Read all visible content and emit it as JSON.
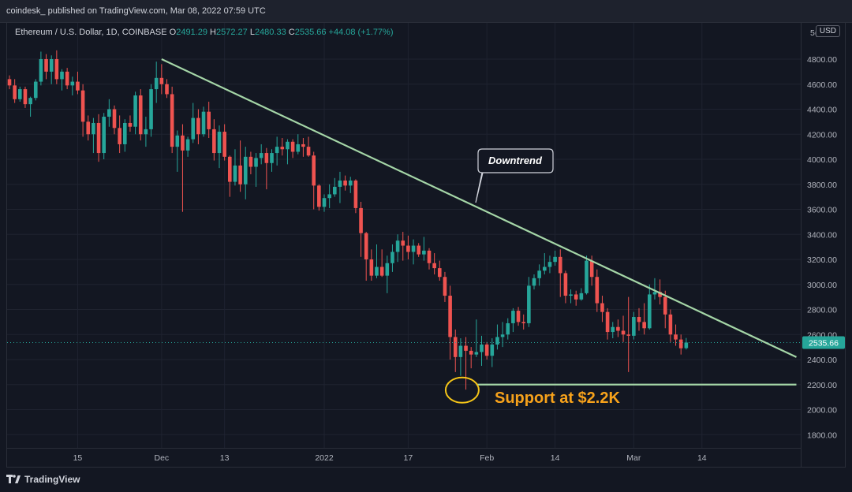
{
  "header": {
    "text": "coindesk_ published on TradingView.com, Mar 08, 2022 07:59 UTC"
  },
  "legend": {
    "symbol": "Ethereum / U.S. Dollar, 1D, COINBASE",
    "o_label": "O",
    "o_value": "2491.29",
    "h_label": "H",
    "h_value": "2572.27",
    "l_label": "L",
    "l_value": "2480.33",
    "c_label": "C",
    "c_value": "2535.66",
    "change": "+44.08 (+1.77%)"
  },
  "currency": "USD",
  "footer": {
    "brand": "TradingView",
    "logo_icon": "tradingview-logo-icon"
  },
  "colors": {
    "background": "#131722",
    "up": "#26a69a",
    "down": "#ef5350",
    "trendline": "#a5d6a7",
    "support_circle": "#f5c518",
    "support_label": "#f7a21b",
    "price_tag": "#26a69a"
  },
  "chart_data": {
    "type": "candlestick",
    "title": "",
    "xlabel": "",
    "ylabel": "",
    "ylim": [
      1700,
      5000
    ],
    "grid": true,
    "x_tick_labels": [
      "15",
      "Dec",
      "13",
      "2022",
      "17",
      "Feb",
      "14",
      "Mar",
      "14"
    ],
    "y_tick_labels": [
      "1800.00",
      "2000.00",
      "2200.00",
      "2400.00",
      "2600.00",
      "2800.00",
      "3000.00",
      "3200.00",
      "3400.00",
      "3600.00",
      "3800.00",
      "4000.00",
      "4200.00",
      "4400.00",
      "4600.00",
      "4800.00"
    ],
    "y_ticks": [
      1800,
      2000,
      2200,
      2400,
      2600,
      2800,
      3000,
      3200,
      3400,
      3600,
      3800,
      4000,
      4200,
      4400,
      4600,
      4800
    ],
    "x_ticks": [
      {
        "label": "15",
        "day": 13
      },
      {
        "label": "Dec",
        "day": 29
      },
      {
        "label": "13",
        "day": 41
      },
      {
        "label": "2022",
        "day": 60
      },
      {
        "label": "17",
        "day": 76
      },
      {
        "label": "Feb",
        "day": 91
      },
      {
        "label": "14",
        "day": 104
      },
      {
        "label": "Mar",
        "day": 119
      },
      {
        "label": "14",
        "day": 132
      }
    ],
    "candles": [
      [
        4640,
        4670,
        4560,
        4590
      ],
      [
        4590,
        4640,
        4450,
        4480
      ],
      [
        4480,
        4580,
        4460,
        4560
      ],
      [
        4560,
        4580,
        4410,
        4440
      ],
      [
        4440,
        4500,
        4340,
        4490
      ],
      [
        4490,
        4640,
        4470,
        4620
      ],
      [
        4620,
        4860,
        4590,
        4800
      ],
      [
        4800,
        4840,
        4640,
        4700
      ],
      [
        4700,
        4830,
        4600,
        4800
      ],
      [
        4800,
        4870,
        4600,
        4640
      ],
      [
        4640,
        4720,
        4550,
        4700
      ],
      [
        4700,
        4730,
        4560,
        4590
      ],
      [
        4590,
        4660,
        4510,
        4620
      ],
      [
        4620,
        4700,
        4520,
        4550
      ],
      [
        4550,
        4600,
        4180,
        4300
      ],
      [
        4300,
        4350,
        4150,
        4200
      ],
      [
        4200,
        4330,
        4050,
        4290
      ],
      [
        4290,
        4360,
        3980,
        4050
      ],
      [
        4050,
        4370,
        4000,
        4340
      ],
      [
        4340,
        4480,
        4260,
        4400
      ],
      [
        4400,
        4430,
        4200,
        4250
      ],
      [
        4250,
        4350,
        4050,
        4120
      ],
      [
        4120,
        4320,
        4060,
        4290
      ],
      [
        4290,
        4350,
        4220,
        4260
      ],
      [
        4260,
        4540,
        4200,
        4510
      ],
      [
        4510,
        4560,
        4150,
        4200
      ],
      [
        4200,
        4340,
        4100,
        4240
      ],
      [
        4240,
        4600,
        4180,
        4560
      ],
      [
        4560,
        4780,
        4450,
        4650
      ],
      [
        4650,
        4760,
        4520,
        4600
      ],
      [
        4600,
        4640,
        4490,
        4520
      ],
      [
        4520,
        4580,
        4050,
        4100
      ],
      [
        4100,
        4230,
        3900,
        4190
      ],
      [
        4190,
        4280,
        3580,
        4070
      ],
      [
        4070,
        4180,
        4020,
        4160
      ],
      [
        4160,
        4450,
        4130,
        4330
      ],
      [
        4330,
        4400,
        4120,
        4200
      ],
      [
        4200,
        4420,
        4180,
        4380
      ],
      [
        4380,
        4460,
        4170,
        4240
      ],
      [
        4240,
        4320,
        3990,
        4050
      ],
      [
        4050,
        4270,
        3930,
        4220
      ],
      [
        4220,
        4280,
        3990,
        4020
      ],
      [
        4020,
        4030,
        3700,
        3820
      ],
      [
        3820,
        4080,
        3790,
        3950
      ],
      [
        3950,
        4150,
        3740,
        3800
      ],
      [
        3800,
        4100,
        3680,
        4020
      ],
      [
        4020,
        4060,
        3880,
        3940
      ],
      [
        3940,
        4050,
        3780,
        4010
      ],
      [
        4010,
        4120,
        3960,
        4050
      ],
      [
        4050,
        4090,
        3760,
        3970
      ],
      [
        3970,
        4080,
        3900,
        4050
      ],
      [
        4050,
        4180,
        3950,
        4100
      ],
      [
        4100,
        4170,
        4030,
        4080
      ],
      [
        4080,
        4160,
        3960,
        4140
      ],
      [
        4140,
        4160,
        4010,
        4060
      ],
      [
        4060,
        4200,
        4040,
        4120
      ],
      [
        4120,
        4170,
        4020,
        4100
      ],
      [
        4100,
        4180,
        4020,
        4030
      ],
      [
        4030,
        4060,
        3600,
        3790
      ],
      [
        3790,
        3800,
        3590,
        3620
      ],
      [
        3620,
        3720,
        3580,
        3690
      ],
      [
        3690,
        3800,
        3610,
        3720
      ],
      [
        3720,
        3850,
        3700,
        3780
      ],
      [
        3780,
        3900,
        3650,
        3830
      ],
      [
        3830,
        3870,
        3750,
        3790
      ],
      [
        3790,
        3860,
        3730,
        3830
      ],
      [
        3830,
        3840,
        3570,
        3610
      ],
      [
        3610,
        3660,
        3220,
        3410
      ],
      [
        3410,
        3420,
        3030,
        3200
      ],
      [
        3200,
        3280,
        3030,
        3070
      ],
      [
        3070,
        3320,
        3050,
        3140
      ],
      [
        3140,
        3280,
        3060,
        3070
      ],
      [
        3070,
        3230,
        2930,
        3170
      ],
      [
        3170,
        3320,
        3100,
        3260
      ],
      [
        3260,
        3400,
        3180,
        3350
      ],
      [
        3350,
        3420,
        3190,
        3310
      ],
      [
        3310,
        3390,
        3200,
        3260
      ],
      [
        3260,
        3360,
        3160,
        3310
      ],
      [
        3310,
        3330,
        3220,
        3240
      ],
      [
        3240,
        3380,
        3190,
        3270
      ],
      [
        3270,
        3290,
        3120,
        3170
      ],
      [
        3170,
        3250,
        3080,
        3130
      ],
      [
        3130,
        3190,
        3030,
        3060
      ],
      [
        3060,
        3100,
        2860,
        2910
      ],
      [
        2910,
        2990,
        2400,
        2580
      ],
      [
        2580,
        2640,
        2300,
        2420
      ],
      [
        2420,
        2570,
        2270,
        2510
      ],
      [
        2510,
        2580,
        2160,
        2470
      ],
      [
        2470,
        2500,
        2330,
        2440
      ],
      [
        2440,
        2720,
        2420,
        2460
      ],
      [
        2460,
        2590,
        2350,
        2520
      ],
      [
        2520,
        2540,
        2400,
        2430
      ],
      [
        2430,
        2570,
        2340,
        2520
      ],
      [
        2520,
        2680,
        2480,
        2580
      ],
      [
        2580,
        2700,
        2500,
        2600
      ],
      [
        2600,
        2730,
        2560,
        2690
      ],
      [
        2690,
        2810,
        2620,
        2790
      ],
      [
        2790,
        2820,
        2670,
        2700
      ],
      [
        2700,
        2760,
        2640,
        2690
      ],
      [
        2690,
        3060,
        2660,
        2990
      ],
      [
        2990,
        3080,
        2960,
        3050
      ],
      [
        3050,
        3160,
        2990,
        3110
      ],
      [
        3110,
        3250,
        3080,
        3140
      ],
      [
        3140,
        3230,
        3090,
        3180
      ],
      [
        3180,
        3270,
        3150,
        3220
      ],
      [
        3220,
        3280,
        2900,
        3090
      ],
      [
        3090,
        3110,
        2850,
        2910
      ],
      [
        2910,
        2960,
        2850,
        2920
      ],
      [
        2920,
        2950,
        2830,
        2880
      ],
      [
        2880,
        2970,
        2870,
        2930
      ],
      [
        2930,
        3230,
        2920,
        3190
      ],
      [
        3190,
        3230,
        2990,
        3060
      ],
      [
        3060,
        3120,
        2780,
        2850
      ],
      [
        2850,
        2910,
        2700,
        2780
      ],
      [
        2780,
        2810,
        2560,
        2620
      ],
      [
        2620,
        2700,
        2570,
        2660
      ],
      [
        2660,
        2720,
        2580,
        2630
      ],
      [
        2630,
        2750,
        2540,
        2600
      ],
      [
        2600,
        2900,
        2300,
        2590
      ],
      [
        2590,
        2780,
        2560,
        2740
      ],
      [
        2740,
        2810,
        2630,
        2700
      ],
      [
        2700,
        2850,
        2600,
        2650
      ],
      [
        2650,
        3000,
        2640,
        2920
      ],
      [
        2920,
        3050,
        2880,
        2940
      ],
      [
        2940,
        3040,
        2840,
        2900
      ],
      [
        2900,
        2950,
        2650,
        2760
      ],
      [
        2760,
        2800,
        2540,
        2600
      ],
      [
        2600,
        2680,
        2510,
        2560
      ],
      [
        2560,
        2600,
        2440,
        2490
      ],
      [
        2491.29,
        2572.27,
        2480.33,
        2535.66
      ]
    ],
    "annotations": {
      "callout": "Downtrend",
      "support_label": "Support at $2.2K",
      "last_price": "2535.66",
      "axis_top_partial": "5("
    },
    "trendline": {
      "from": {
        "day": 29,
        "price": 4800
      },
      "to": {
        "day": 150,
        "price": 2420
      }
    },
    "support_line": {
      "from": {
        "day": 86,
        "price": 2200
      },
      "to": {
        "day": 150,
        "price": 2200
      }
    },
    "support_marker": {
      "day": 86,
      "price": 2200
    }
  }
}
